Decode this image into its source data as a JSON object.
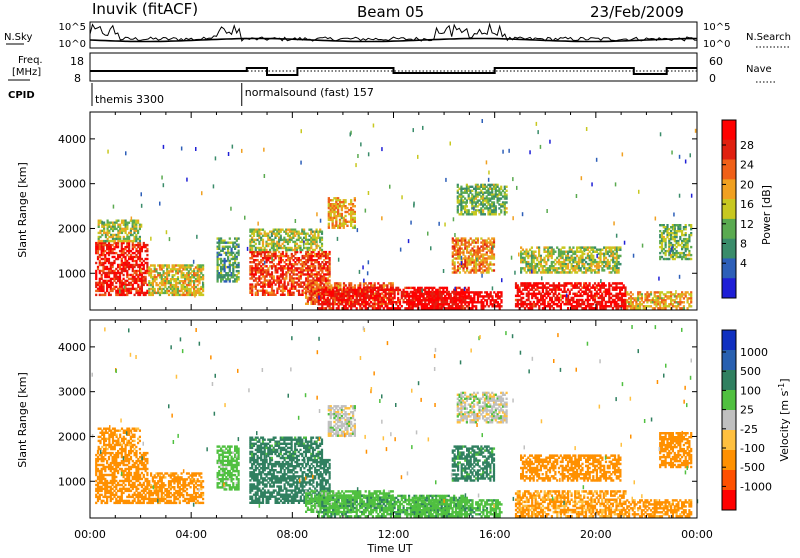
{
  "header": {
    "station": "Inuvik (fitACF)",
    "beam": "Beam 05",
    "date": "23/Feb/2009"
  },
  "top_panels": {
    "nsky": {
      "left_label": "N.Sky",
      "right_label": "N.Search",
      "left_ticks": [
        "10^5",
        "10^0"
      ],
      "right_ticks": [
        "10^5",
        "10^0"
      ]
    },
    "freq": {
      "left_label_1": "Freq.",
      "left_label_2": "[MHz]",
      "right_label": "Nave",
      "left_ticks": [
        "18",
        "8"
      ],
      "right_ticks": [
        "60",
        "0"
      ]
    },
    "cpid": {
      "label": "CPID",
      "segments": [
        {
          "label": "themis 3300",
          "start_hour": 0.0
        },
        {
          "label": "normalsound (fast) 157",
          "start_hour": 6.0
        }
      ]
    }
  },
  "colors": {
    "power": [
      "#1f1fd6",
      "#2d5fb8",
      "#3a8c6a",
      "#5aaa50",
      "#c8c820",
      "#f0a020",
      "#f06018",
      "#e02010",
      "#ff0000"
    ],
    "velocity": [
      "#ff0000",
      "#ff5000",
      "#ff9000",
      "#ffc040",
      "#c0c0c0",
      "#50c040",
      "#308060",
      "#2860b0",
      "#1030c0"
    ]
  },
  "chart_data": [
    {
      "type": "heatmap",
      "name": "power",
      "title": "",
      "xlabel": "",
      "ylabel": "Slant Range [km]",
      "xlim_hours": [
        0,
        24
      ],
      "ylim_km": [
        180,
        4600
      ],
      "x_ticks": [
        "00:00",
        "04:00",
        "08:00",
        "12:00",
        "16:00",
        "20:00",
        "00:00"
      ],
      "y_ticks": [
        1000,
        2000,
        3000,
        4000
      ],
      "colorbar": {
        "label": "Power [dB]",
        "ticks": [
          "28",
          "24",
          "20",
          "16",
          "12",
          "8",
          "4"
        ],
        "range": [
          0,
          30
        ]
      },
      "regions": [
        {
          "t0": 0.2,
          "t1": 2.3,
          "r0": 500,
          "r1": 1700,
          "value": 26
        },
        {
          "t0": 0.3,
          "t1": 2.0,
          "r0": 1700,
          "r1": 2200,
          "value": 14
        },
        {
          "t0": 2.3,
          "t1": 4.5,
          "r0": 500,
          "r1": 1200,
          "value": 16
        },
        {
          "t0": 5.0,
          "t1": 5.9,
          "r0": 800,
          "r1": 1800,
          "value": 10
        },
        {
          "t0": 6.3,
          "t1": 9.5,
          "r0": 500,
          "r1": 1500,
          "value": 24
        },
        {
          "t0": 6.3,
          "t1": 9.2,
          "r0": 1500,
          "r1": 2000,
          "value": 14
        },
        {
          "t0": 9.4,
          "t1": 10.5,
          "r0": 2000,
          "r1": 2700,
          "value": 18
        },
        {
          "t0": 8.5,
          "t1": 12.0,
          "r0": 300,
          "r1": 800,
          "value": 22
        },
        {
          "t0": 9.0,
          "t1": 15.0,
          "r0": 200,
          "r1": 700,
          "value": 27
        },
        {
          "t0": 12.5,
          "t1": 16.3,
          "r0": 200,
          "r1": 600,
          "value": 29
        },
        {
          "t0": 14.3,
          "t1": 16.0,
          "r0": 1000,
          "r1": 1800,
          "value": 20
        },
        {
          "t0": 14.5,
          "t1": 16.5,
          "r0": 2300,
          "r1": 3000,
          "value": 12
        },
        {
          "t0": 16.8,
          "t1": 21.2,
          "r0": 200,
          "r1": 800,
          "value": 28
        },
        {
          "t0": 17.0,
          "t1": 21.0,
          "r0": 1000,
          "r1": 1600,
          "value": 14
        },
        {
          "t0": 21.2,
          "t1": 23.8,
          "r0": 200,
          "r1": 600,
          "value": 18
        },
        {
          "t0": 22.5,
          "t1": 23.8,
          "r0": 1300,
          "r1": 2100,
          "value": 12
        }
      ]
    },
    {
      "type": "heatmap",
      "name": "velocity",
      "title": "",
      "xlabel": "Time UT",
      "ylabel": "Slant Range [km]",
      "xlim_hours": [
        0,
        24
      ],
      "ylim_km": [
        180,
        4600
      ],
      "x_ticks": [
        "00:00",
        "04:00",
        "08:00",
        "12:00",
        "16:00",
        "20:00",
        "00:00"
      ],
      "y_ticks": [
        1000,
        2000,
        3000,
        4000
      ],
      "colorbar": {
        "label": "Velocity [m s^-1]",
        "ticks": [
          "1000",
          "500",
          "100",
          "25",
          "-25",
          "-100",
          "-500",
          "-1000"
        ],
        "range": [
          -1200,
          1200
        ]
      },
      "regions": [
        {
          "t0": 0.2,
          "t1": 2.3,
          "r0": 500,
          "r1": 1700,
          "value": -250
        },
        {
          "t0": 0.3,
          "t1": 2.0,
          "r0": 1700,
          "r1": 2200,
          "value": -150
        },
        {
          "t0": 2.3,
          "t1": 4.5,
          "r0": 500,
          "r1": 1200,
          "value": -150
        },
        {
          "t0": 5.0,
          "t1": 5.9,
          "r0": 800,
          "r1": 1800,
          "value": 60
        },
        {
          "t0": 6.3,
          "t1": 9.5,
          "r0": 500,
          "r1": 1500,
          "value": 300
        },
        {
          "t0": 6.3,
          "t1": 9.2,
          "r0": 1500,
          "r1": 2000,
          "value": 150
        },
        {
          "t0": 9.4,
          "t1": 10.5,
          "r0": 2000,
          "r1": 2700,
          "value": 0
        },
        {
          "t0": 8.5,
          "t1": 12.0,
          "r0": 300,
          "r1": 800,
          "value": 60
        },
        {
          "t0": 9.0,
          "t1": 15.0,
          "r0": 200,
          "r1": 700,
          "value": 80
        },
        {
          "t0": 12.5,
          "t1": 16.3,
          "r0": 200,
          "r1": 600,
          "value": 70
        },
        {
          "t0": 14.3,
          "t1": 16.0,
          "r0": 1000,
          "r1": 1800,
          "value": 150
        },
        {
          "t0": 14.5,
          "t1": 16.5,
          "r0": 2300,
          "r1": 3000,
          "value": 0
        },
        {
          "t0": 16.8,
          "t1": 21.2,
          "r0": 200,
          "r1": 800,
          "value": -120
        },
        {
          "t0": 17.0,
          "t1": 21.0,
          "r0": 1000,
          "r1": 1600,
          "value": -200
        },
        {
          "t0": 21.2,
          "t1": 23.8,
          "r0": 200,
          "r1": 600,
          "value": -150
        },
        {
          "t0": 22.5,
          "t1": 23.8,
          "r0": 1300,
          "r1": 2100,
          "value": -350
        }
      ]
    }
  ]
}
